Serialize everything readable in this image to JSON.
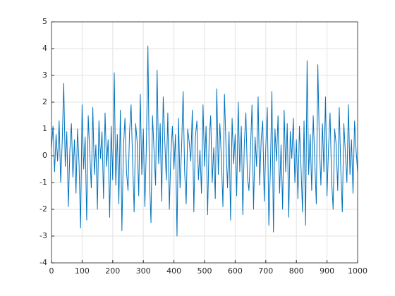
{
  "chart_data": {
    "type": "line",
    "x": [
      0,
      5,
      10,
      15,
      20,
      25,
      30,
      35,
      40,
      45,
      50,
      55,
      60,
      65,
      70,
      75,
      80,
      85,
      90,
      95,
      100,
      105,
      110,
      115,
      120,
      125,
      130,
      135,
      140,
      145,
      150,
      155,
      160,
      165,
      170,
      175,
      180,
      185,
      190,
      195,
      200,
      205,
      210,
      215,
      220,
      225,
      230,
      235,
      240,
      245,
      250,
      255,
      260,
      265,
      270,
      275,
      280,
      285,
      290,
      295,
      300,
      305,
      310,
      315,
      320,
      325,
      330,
      335,
      340,
      345,
      350,
      355,
      360,
      365,
      370,
      375,
      380,
      385,
      390,
      395,
      400,
      405,
      410,
      415,
      420,
      425,
      430,
      435,
      440,
      445,
      450,
      455,
      460,
      465,
      470,
      475,
      480,
      485,
      490,
      495,
      500,
      505,
      510,
      515,
      520,
      525,
      530,
      535,
      540,
      545,
      550,
      555,
      560,
      565,
      570,
      575,
      580,
      585,
      590,
      595,
      600,
      605,
      610,
      615,
      620,
      625,
      630,
      635,
      640,
      645,
      650,
      655,
      660,
      665,
      670,
      675,
      680,
      685,
      690,
      695,
      700,
      705,
      710,
      715,
      720,
      725,
      730,
      735,
      740,
      745,
      750,
      755,
      760,
      765,
      770,
      775,
      780,
      785,
      790,
      795,
      800,
      805,
      810,
      815,
      820,
      825,
      830,
      835,
      840,
      845,
      850,
      855,
      860,
      865,
      870,
      875,
      880,
      885,
      890,
      895,
      900,
      905,
      910,
      915,
      920,
      925,
      930,
      935,
      940,
      945,
      950,
      955,
      960,
      965,
      970,
      975,
      980,
      985,
      990,
      995,
      1000
    ],
    "series": [
      {
        "color": "#0072bd",
        "values": [
          0.3,
          1.1,
          -0.6,
          0.8,
          -0.2,
          1.3,
          -1.0,
          0.5,
          2.7,
          -0.4,
          0.9,
          -1.9,
          0.2,
          1.2,
          -0.8,
          0.6,
          -1.4,
          1.0,
          -0.3,
          -2.7,
          1.9,
          -0.5,
          0.7,
          -2.4,
          1.5,
          0.1,
          -1.2,
          1.8,
          -0.7,
          0.4,
          -2.0,
          1.3,
          -0.1,
          0.9,
          -1.6,
          1.6,
          -0.4,
          0.6,
          -2.3,
          1.1,
          -0.9,
          3.1,
          -1.1,
          0.8,
          -1.8,
          1.7,
          -2.8,
          0.3,
          1.4,
          -0.6,
          -1.3,
          0.9,
          1.9,
          -0.2,
          -2.1,
          1.2,
          0.5,
          -1.5,
          2.3,
          -0.7,
          1.0,
          -1.9,
          0.4,
          4.1,
          -0.8,
          -2.5,
          1.5,
          0.2,
          -1.1,
          3.2,
          -0.3,
          1.2,
          -1.7,
          2.2,
          0.6,
          -0.9,
          1.6,
          -2.0,
          0.1,
          1.1,
          -0.5,
          0.8,
          -3.0,
          1.4,
          -1.2,
          0.3,
          2.4,
          -0.6,
          -1.8,
          1.0,
          0.5,
          -0.2,
          1.7,
          -2.1,
          0.7,
          1.3,
          -0.9,
          0.2,
          -1.4,
          1.9,
          -0.4,
          1.1,
          -2.2,
          0.6,
          1.5,
          -1.0,
          0.3,
          -1.6,
          2.5,
          -0.7,
          1.2,
          -0.1,
          -1.9,
          2.3,
          0.4,
          -1.2,
          0.9,
          -2.4,
          1.4,
          -0.3,
          0.8,
          -1.5,
          2.0,
          -0.6,
          1.1,
          -2.2,
          0.5,
          1.6,
          -0.8,
          -1.3,
          0.2,
          1.9,
          -2.0,
          0.7,
          -0.4,
          2.2,
          -1.1,
          0.6,
          1.3,
          -1.7,
          0.3,
          1.8,
          -2.6,
          -0.5,
          2.4,
          -2.85,
          1.0,
          -0.2,
          1.5,
          -1.4,
          0.4,
          -2.0,
          1.7,
          -0.6,
          1.2,
          -2.3,
          0.9,
          -0.1,
          1.4,
          -1.0,
          0.6,
          -1.6,
          1.1,
          -0.4,
          -2.1,
          1.3,
          -2.6,
          3.55,
          -0.7,
          0.8,
          -1.3,
          1.5,
          -0.2,
          -1.8,
          3.4,
          0.5,
          -1.1,
          1.2,
          -0.6,
          2.2,
          -1.5,
          0.3,
          1.6,
          -0.9,
          -2.0,
          1.0,
          0.4,
          -1.3,
          1.8,
          -0.5,
          -2.1,
          1.2,
          0.1,
          -1.0,
          1.9,
          -0.7,
          0.6,
          -1.4,
          1.3,
          0.2,
          -0.6
        ]
      }
    ],
    "xlim": [
      0,
      1000
    ],
    "xticks": [
      0,
      100,
      200,
      300,
      400,
      500,
      600,
      700,
      800,
      900,
      1000
    ],
    "ylim": [
      -4,
      5
    ],
    "yticks": [
      -4,
      -3,
      -2,
      -1,
      0,
      1,
      2,
      3,
      4,
      5
    ],
    "grid": true
  }
}
